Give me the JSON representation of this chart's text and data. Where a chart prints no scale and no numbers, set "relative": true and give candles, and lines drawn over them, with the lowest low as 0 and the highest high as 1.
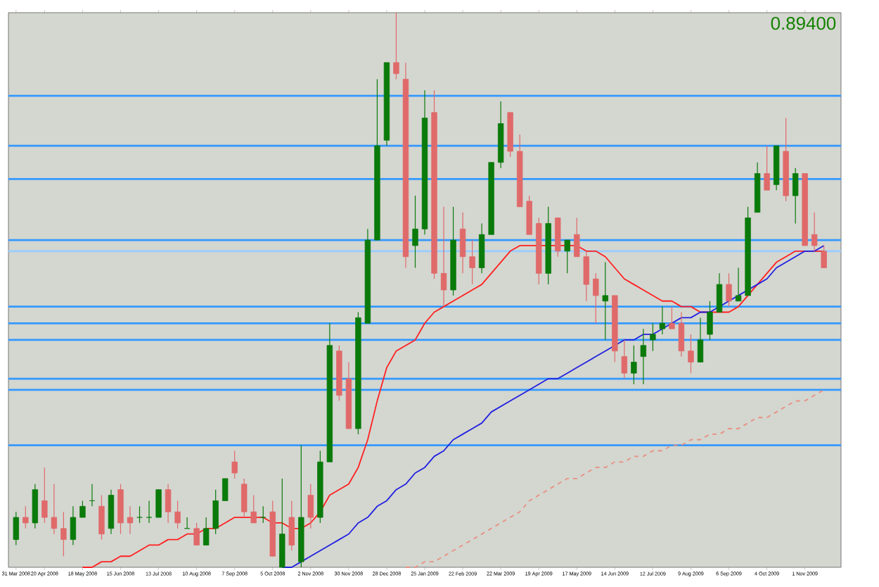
{
  "chart_data": {
    "type": "candlestick",
    "relative": true,
    "categories": [
      "31 Mar 2008",
      null,
      null,
      "20 Apr 2008",
      null,
      null,
      null,
      "18 May 2008",
      null,
      null,
      null,
      "15 Jun 2008",
      null,
      null,
      null,
      "13 Jul 2008",
      null,
      null,
      null,
      "10 Aug 2008",
      null,
      null,
      null,
      "7 Sep 2008",
      null,
      null,
      null,
      "5 Oct 2008",
      null,
      null,
      null,
      "2 Nov 2008",
      null,
      null,
      null,
      "30 Nov 2008",
      null,
      null,
      null,
      "28 Dec 2008",
      null,
      null,
      null,
      "25 Jan 2009",
      null,
      null,
      null,
      "22 Feb 2009",
      null,
      null,
      null,
      "22 Mar 2009",
      null,
      null,
      null,
      "19 Apr 2009",
      null,
      null,
      null,
      "17 May 2009",
      null,
      null,
      null,
      "14 Jun 2009",
      null,
      null,
      null,
      "12 Jul 2009",
      null,
      null,
      null,
      "9 Aug 2009",
      null,
      null,
      null,
      "6 Sep 2009",
      null,
      null,
      null,
      "4 Oct 2009",
      null,
      null,
      null,
      "1 Nov 2009",
      null,
      null
    ],
    "ohlc": [
      [
        0.05,
        0.1,
        0.04,
        0.09
      ],
      [
        0.09,
        0.11,
        0.07,
        0.08
      ],
      [
        0.08,
        0.15,
        0.07,
        0.14
      ],
      [
        0.12,
        0.18,
        0.08,
        0.09
      ],
      [
        0.09,
        0.15,
        0.06,
        0.07
      ],
      [
        0.07,
        0.1,
        0.02,
        0.05
      ],
      [
        0.05,
        0.11,
        0.04,
        0.09
      ],
      [
        0.09,
        0.12,
        0.09,
        0.11
      ],
      [
        0.12,
        0.15,
        0.11,
        0.12
      ],
      [
        0.11,
        0.13,
        0.05,
        0.06
      ],
      [
        0.07,
        0.14,
        0.06,
        0.13
      ],
      [
        0.14,
        0.15,
        0.06,
        0.08
      ],
      [
        0.09,
        0.11,
        0.06,
        0.08
      ],
      [
        0.09,
        0.11,
        0.08,
        0.09
      ],
      [
        0.09,
        0.12,
        0.08,
        0.09
      ],
      [
        0.09,
        0.14,
        0.09,
        0.14
      ],
      [
        0.14,
        0.15,
        0.08,
        0.1
      ],
      [
        0.1,
        0.12,
        0.07,
        0.08
      ],
      [
        0.07,
        0.09,
        0.07,
        0.07
      ],
      [
        0.07,
        0.08,
        0.04,
        0.04
      ],
      [
        0.04,
        0.09,
        0.04,
        0.07
      ],
      [
        0.07,
        0.14,
        0.06,
        0.12
      ],
      [
        0.12,
        0.16,
        0.12,
        0.16
      ],
      [
        0.19,
        0.21,
        0.16,
        0.17
      ],
      [
        0.15,
        0.16,
        0.09,
        0.1
      ],
      [
        0.1,
        0.13,
        0.08,
        0.08
      ],
      [
        0.09,
        0.11,
        0.08,
        0.09
      ],
      [
        0.1,
        0.12,
        0.02,
        0.02
      ],
      [
        0.0,
        0.16,
        0.0,
        0.06
      ],
      [
        0.09,
        0.12,
        0.03,
        0.04
      ],
      [
        0.01,
        0.22,
        0.0,
        0.09
      ],
      [
        0.13,
        0.15,
        0.07,
        0.09
      ],
      [
        0.09,
        0.21,
        0.08,
        0.19
      ],
      [
        0.19,
        0.44,
        0.19,
        0.4
      ],
      [
        0.39,
        0.4,
        0.3,
        0.31
      ],
      [
        0.34,
        0.37,
        0.25,
        0.25
      ],
      [
        0.25,
        0.46,
        0.24,
        0.45
      ],
      [
        0.44,
        0.61,
        0.44,
        0.59
      ],
      [
        0.59,
        0.88,
        0.59,
        0.76
      ],
      [
        0.77,
        0.91,
        0.76,
        0.91
      ],
      [
        0.91,
        1.0,
        0.88,
        0.89
      ],
      [
        0.88,
        0.91,
        0.54,
        0.56
      ],
      [
        0.58,
        0.67,
        0.54,
        0.61
      ],
      [
        0.61,
        0.86,
        0.6,
        0.81
      ],
      [
        0.82,
        0.86,
        0.52,
        0.53
      ],
      [
        0.53,
        0.65,
        0.47,
        0.5
      ],
      [
        0.5,
        0.65,
        0.49,
        0.59
      ],
      [
        0.61,
        0.64,
        0.53,
        0.56
      ],
      [
        0.56,
        0.59,
        0.51,
        0.54
      ],
      [
        0.54,
        0.62,
        0.53,
        0.6
      ],
      [
        0.6,
        0.73,
        0.6,
        0.73
      ],
      [
        0.73,
        0.84,
        0.72,
        0.8
      ],
      [
        0.82,
        0.82,
        0.74,
        0.75
      ],
      [
        0.75,
        0.78,
        0.65,
        0.65
      ],
      [
        0.66,
        0.67,
        0.6,
        0.6
      ],
      [
        0.62,
        0.63,
        0.51,
        0.53
      ],
      [
        0.53,
        0.65,
        0.51,
        0.62
      ],
      [
        0.63,
        0.63,
        0.56,
        0.57
      ],
      [
        0.57,
        0.59,
        0.53,
        0.59
      ],
      [
        0.6,
        0.63,
        0.56,
        0.56
      ],
      [
        0.56,
        0.57,
        0.48,
        0.51
      ],
      [
        0.52,
        0.53,
        0.44,
        0.49
      ],
      [
        0.48,
        0.55,
        0.41,
        0.49
      ],
      [
        0.49,
        0.49,
        0.37,
        0.39
      ],
      [
        0.38,
        0.41,
        0.34,
        0.35
      ],
      [
        0.35,
        0.4,
        0.33,
        0.37
      ],
      [
        0.38,
        0.43,
        0.33,
        0.4
      ],
      [
        0.41,
        0.44,
        0.39,
        0.42
      ],
      [
        0.43,
        0.47,
        0.42,
        0.44
      ],
      [
        0.44,
        0.47,
        0.43,
        0.43
      ],
      [
        0.44,
        0.46,
        0.38,
        0.39
      ],
      [
        0.39,
        0.42,
        0.35,
        0.37
      ],
      [
        0.37,
        0.45,
        0.37,
        0.41
      ],
      [
        0.42,
        0.48,
        0.41,
        0.46
      ],
      [
        0.46,
        0.53,
        0.46,
        0.51
      ],
      [
        0.51,
        0.53,
        0.47,
        0.48
      ],
      [
        0.48,
        0.54,
        0.48,
        0.49
      ],
      [
        0.49,
        0.65,
        0.49,
        0.63
      ],
      [
        0.64,
        0.73,
        0.64,
        0.71
      ],
      [
        0.71,
        0.76,
        0.68,
        0.68
      ],
      [
        0.69,
        0.76,
        0.68,
        0.76
      ],
      [
        0.75,
        0.81,
        0.66,
        0.67
      ],
      [
        0.67,
        0.72,
        0.62,
        0.71
      ],
      [
        0.71,
        0.71,
        0.58,
        0.58
      ],
      [
        0.6,
        0.64,
        0.57,
        0.58
      ],
      [
        0.57,
        0.58,
        0.54,
        0.54
      ]
    ],
    "series": [
      {
        "type": "line",
        "color": "#ff2020",
        "values": [
          null,
          null,
          null,
          null,
          null,
          null,
          null,
          0.0,
          0.0,
          0.01,
          0.01,
          0.02,
          0.02,
          0.03,
          0.04,
          0.04,
          0.05,
          0.05,
          0.06,
          0.06,
          0.07,
          0.07,
          0.08,
          0.09,
          0.09,
          0.09,
          0.09,
          0.08,
          0.08,
          0.07,
          0.07,
          0.08,
          0.1,
          0.13,
          0.14,
          0.15,
          0.18,
          0.23,
          0.3,
          0.36,
          0.39,
          0.4,
          0.41,
          0.44,
          0.46,
          0.47,
          0.48,
          0.49,
          0.5,
          0.51,
          0.53,
          0.55,
          0.57,
          0.58,
          0.58,
          0.58,
          0.58,
          0.58,
          0.58,
          0.58,
          0.57,
          0.57,
          0.56,
          0.54,
          0.52,
          0.51,
          0.5,
          0.49,
          0.48,
          0.48,
          0.47,
          0.47,
          0.46,
          0.46,
          0.46,
          0.46,
          0.47,
          0.49,
          0.51,
          0.53,
          0.55,
          0.56,
          0.57,
          0.57,
          0.57,
          0.57
        ]
      },
      {
        "type": "line",
        "color": "#2020e0",
        "values": [
          null,
          null,
          null,
          null,
          null,
          null,
          null,
          null,
          null,
          null,
          null,
          null,
          null,
          null,
          null,
          null,
          null,
          null,
          null,
          null,
          null,
          null,
          null,
          null,
          null,
          null,
          null,
          null,
          0.0,
          0.0,
          0.01,
          0.02,
          0.03,
          0.04,
          0.05,
          0.06,
          0.08,
          0.09,
          0.11,
          0.12,
          0.14,
          0.15,
          0.17,
          0.18,
          0.2,
          0.21,
          0.23,
          0.24,
          0.25,
          0.26,
          0.28,
          0.29,
          0.3,
          0.31,
          0.32,
          0.33,
          0.34,
          0.34,
          0.35,
          0.36,
          0.37,
          0.38,
          0.39,
          0.4,
          0.41,
          0.41,
          0.42,
          0.42,
          0.43,
          0.44,
          0.45,
          0.45,
          0.46,
          0.46,
          0.47,
          0.48,
          0.49,
          0.5,
          0.51,
          0.52,
          0.54,
          0.55,
          0.56,
          0.57,
          0.57,
          0.58
        ]
      },
      {
        "type": "line",
        "color": "#e89080",
        "line_style": "dashed",
        "values": [
          null,
          null,
          null,
          null,
          null,
          null,
          null,
          null,
          null,
          null,
          null,
          null,
          null,
          null,
          null,
          null,
          null,
          null,
          null,
          null,
          null,
          null,
          null,
          null,
          null,
          null,
          null,
          null,
          null,
          null,
          null,
          null,
          null,
          null,
          null,
          null,
          null,
          null,
          null,
          null,
          null,
          0.0,
          0.0,
          0.01,
          0.01,
          0.02,
          0.03,
          0.04,
          0.05,
          0.06,
          0.07,
          0.08,
          0.09,
          0.1,
          0.12,
          0.13,
          0.14,
          0.15,
          0.16,
          0.16,
          0.17,
          0.18,
          0.18,
          0.19,
          0.19,
          0.2,
          0.2,
          0.21,
          0.21,
          0.22,
          0.22,
          0.23,
          0.23,
          0.24,
          0.24,
          0.25,
          0.25,
          0.26,
          0.27,
          0.27,
          0.28,
          0.29,
          0.3,
          0.3,
          0.31,
          0.32
        ]
      }
    ],
    "ref_lines": [
      {
        "axis": "y",
        "value": 0.85,
        "color": "#3399ff"
      },
      {
        "axis": "y",
        "value": 0.76,
        "color": "#3399ff"
      },
      {
        "axis": "y",
        "value": 0.7,
        "color": "#3399ff"
      },
      {
        "axis": "y",
        "value": 0.59,
        "color": "#3399ff"
      },
      {
        "axis": "y",
        "value": 0.57,
        "color": "#99ccff"
      },
      {
        "axis": "y",
        "value": 0.47,
        "color": "#3399ff"
      },
      {
        "axis": "y",
        "value": 0.44,
        "color": "#3399ff"
      },
      {
        "axis": "y",
        "value": 0.41,
        "color": "#3399ff"
      },
      {
        "axis": "y",
        "value": 0.34,
        "color": "#3399ff"
      },
      {
        "axis": "y",
        "value": 0.32,
        "color": "#3399ff"
      },
      {
        "axis": "y",
        "value": 0.22,
        "color": "#3399ff"
      }
    ],
    "annotations": [
      "0.89400"
    ]
  }
}
